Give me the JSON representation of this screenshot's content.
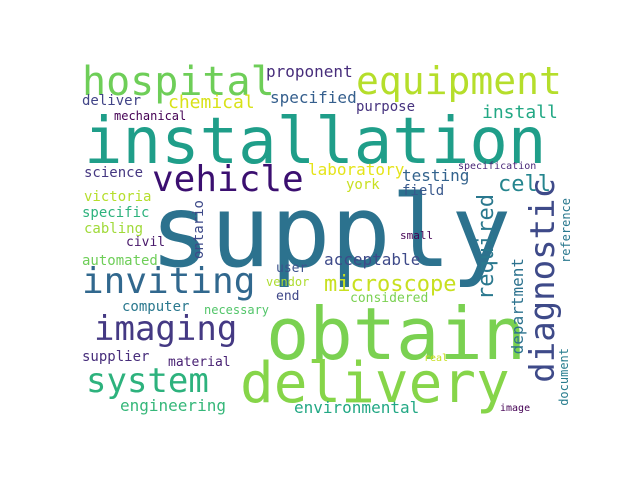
{
  "word_cloud": {
    "background": "#ffffff",
    "words": {
      "installation": {
        "text": "installation",
        "color": "#1f9e89"
      },
      "supply": {
        "text": "supply",
        "color": "#2c728e"
      },
      "obtain": {
        "text": "obtain",
        "color": "#7ad151"
      },
      "delivery": {
        "text": "delivery",
        "color": "#86d549"
      },
      "hospital": {
        "text": "hospital",
        "color": "#6ece58"
      },
      "equipment": {
        "text": "equipment",
        "color": "#b5de2b"
      },
      "vehicle": {
        "text": "vehicle",
        "color": "#3b0f70"
      },
      "diagnostic": {
        "text": "diagnostic",
        "color": "#3e4a89"
      },
      "inviting": {
        "text": "inviting",
        "color": "#31688e"
      },
      "imaging": {
        "text": "imaging",
        "color": "#443983"
      },
      "system": {
        "text": "system",
        "color": "#2db27d"
      },
      "microscope": {
        "text": "microscope",
        "color": "#c8e020"
      },
      "required": {
        "text": "required",
        "color": "#2a788e"
      },
      "cell": {
        "text": "cell",
        "color": "#25858e"
      },
      "department": {
        "text": "department",
        "color": "#2c728e"
      },
      "chemical": {
        "text": "chemical",
        "color": "#d8e219"
      },
      "proponent": {
        "text": "proponent",
        "color": "#472d7b"
      },
      "specified": {
        "text": "specified",
        "color": "#355f8d"
      },
      "purpose": {
        "text": "purpose",
        "color": "#46327e"
      },
      "install": {
        "text": "install",
        "color": "#22a884"
      },
      "deliver": {
        "text": "deliver",
        "color": "#414487"
      },
      "mechanical": {
        "text": "mechanical",
        "color": "#440154"
      },
      "laboratory": {
        "text": "laboratory",
        "color": "#e5e419"
      },
      "york": {
        "text": "york",
        "color": "#c8e020"
      },
      "testing": {
        "text": "testing",
        "color": "#33638d"
      },
      "field": {
        "text": "field",
        "color": "#38588c"
      },
      "specification": {
        "text": "specification",
        "color": "#482677"
      },
      "science": {
        "text": "science",
        "color": "#453781"
      },
      "victoria": {
        "text": "victoria",
        "color": "#b5de2b"
      },
      "specific": {
        "text": "specific",
        "color": "#2db27d"
      },
      "cabling": {
        "text": "cabling",
        "color": "#a0da39"
      },
      "civil": {
        "text": "civil",
        "color": "#48186a"
      },
      "automated": {
        "text": "automated",
        "color": "#6ece58"
      },
      "ontario": {
        "text": "ontario",
        "color": "#3e4a89"
      },
      "small": {
        "text": "small",
        "color": "#440154"
      },
      "reference": {
        "text": "reference",
        "color": "#2a788e"
      },
      "user": {
        "text": "user",
        "color": "#3b528b"
      },
      "acceptable": {
        "text": "acceptable",
        "color": "#3e4a89"
      },
      "vendor": {
        "text": "vendor",
        "color": "#addc30"
      },
      "end": {
        "text": "end",
        "color": "#3f4788"
      },
      "considered": {
        "text": "considered",
        "color": "#7ad151"
      },
      "computer": {
        "text": "computer",
        "color": "#2a788e"
      },
      "necessary": {
        "text": "necessary",
        "color": "#52c569"
      },
      "supplier": {
        "text": "supplier",
        "color": "#472d7b"
      },
      "material": {
        "text": "material",
        "color": "#482173"
      },
      "real": {
        "text": "real",
        "color": "#c8e020"
      },
      "document": {
        "text": "document",
        "color": "#287d8e"
      },
      "engineering": {
        "text": "engineering",
        "color": "#35b779"
      },
      "environmental": {
        "text": "environmental",
        "color": "#22a884"
      },
      "image": {
        "text": "image",
        "color": "#440154"
      }
    }
  }
}
